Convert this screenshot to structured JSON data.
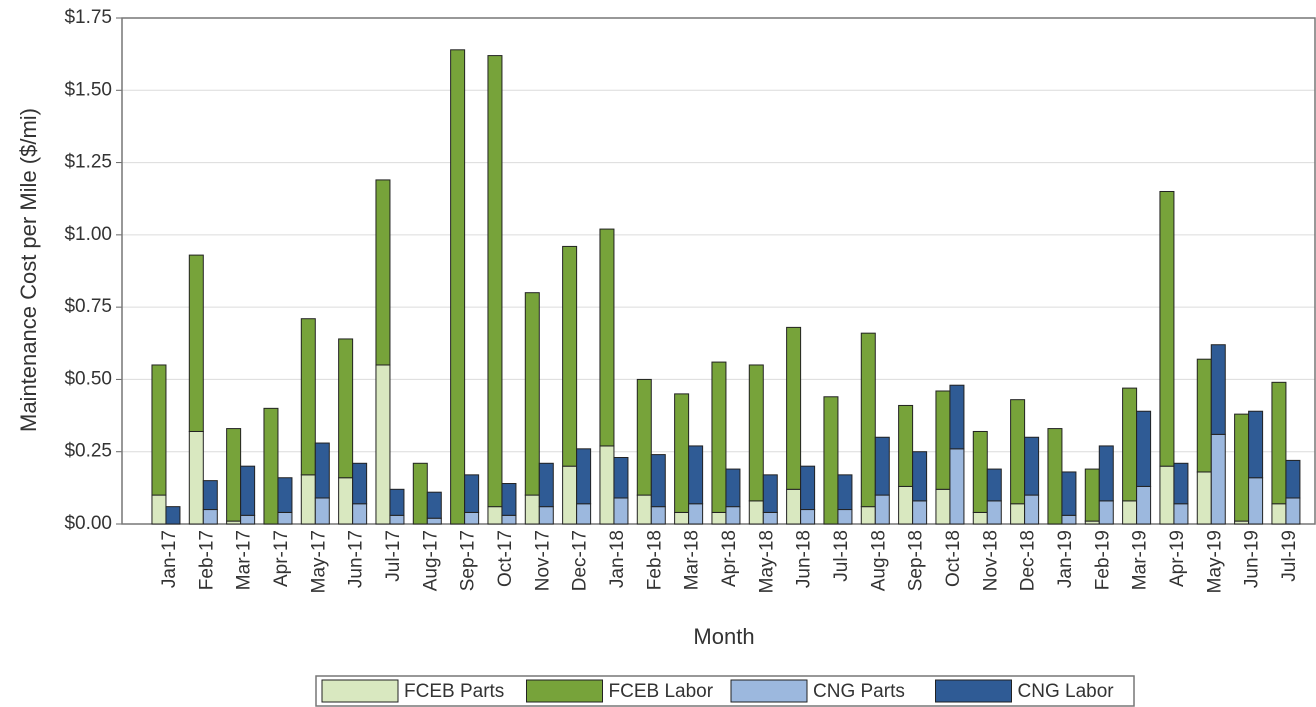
{
  "chart_data": {
    "type": "bar",
    "stacked": true,
    "xlabel": "Month",
    "ylabel": "Maintenance Cost per Mile ($/mi)",
    "categories": [
      "Jan-17",
      "Feb-17",
      "Mar-17",
      "Apr-17",
      "May-17",
      "Jun-17",
      "Jul-17",
      "Aug-17",
      "Sep-17",
      "Oct-17",
      "Nov-17",
      "Dec-17",
      "Jan-18",
      "Feb-18",
      "Mar-18",
      "Apr-18",
      "May-18",
      "Jun-18",
      "Jul-18",
      "Aug-18",
      "Sep-18",
      "Oct-18",
      "Nov-18",
      "Dec-18",
      "Jan-19",
      "Feb-19",
      "Mar-19",
      "Apr-19",
      "May-19",
      "Jun-19",
      "Jul-19"
    ],
    "series": [
      {
        "name": "FCEB Parts",
        "color": "#d9e8c0",
        "values": [
          0.1,
          0.32,
          0.01,
          0.0,
          0.17,
          0.16,
          0.55,
          0.0,
          0.0,
          0.06,
          0.1,
          0.2,
          0.27,
          0.1,
          0.04,
          0.04,
          0.08,
          0.12,
          0.0,
          0.06,
          0.13,
          0.12,
          0.04,
          0.07,
          0.0,
          0.01,
          0.08,
          0.2,
          0.18,
          0.01,
          0.07
        ]
      },
      {
        "name": "FCEB Labor",
        "color": "#77a33a",
        "values": [
          0.45,
          0.61,
          0.32,
          0.4,
          0.54,
          0.48,
          0.64,
          0.21,
          1.64,
          1.56,
          0.7,
          0.76,
          0.75,
          0.4,
          0.41,
          0.52,
          0.47,
          0.56,
          0.44,
          0.6,
          0.28,
          0.34,
          0.28,
          0.36,
          0.33,
          0.18,
          0.39,
          0.95,
          0.39,
          0.37,
          0.42
        ]
      },
      {
        "name": "CNG Parts",
        "color": "#9cb8de",
        "values": [
          0.0,
          0.05,
          0.03,
          0.04,
          0.09,
          0.07,
          0.03,
          0.02,
          0.04,
          0.03,
          0.06,
          0.07,
          0.09,
          0.06,
          0.07,
          0.06,
          0.04,
          0.05,
          0.05,
          0.1,
          0.08,
          0.26,
          0.08,
          0.1,
          0.03,
          0.08,
          0.13,
          0.07,
          0.31,
          0.16,
          0.09
        ]
      },
      {
        "name": "CNG Labor",
        "color": "#2f5b95",
        "values": [
          0.06,
          0.1,
          0.17,
          0.12,
          0.19,
          0.14,
          0.09,
          0.09,
          0.13,
          0.11,
          0.15,
          0.19,
          0.14,
          0.18,
          0.2,
          0.13,
          0.13,
          0.15,
          0.12,
          0.2,
          0.17,
          0.22,
          0.11,
          0.2,
          0.15,
          0.19,
          0.26,
          0.14,
          0.31,
          0.23,
          0.13
        ]
      }
    ],
    "ylim": [
      0,
      1.75
    ],
    "yticks": [
      {
        "value": 0,
        "label": "$0.00"
      },
      {
        "value": 0.25,
        "label": "$0.25"
      },
      {
        "value": 0.5,
        "label": "$0.50"
      },
      {
        "value": 0.75,
        "label": "$0.75"
      },
      {
        "value": 1,
        "label": "$1.00"
      },
      {
        "value": 1.25,
        "label": "$1.25"
      },
      {
        "value": 1.5,
        "label": "$1.50"
      },
      {
        "value": 1.75,
        "label": "$1.75"
      }
    ],
    "grid": true,
    "legend": "bottom"
  }
}
